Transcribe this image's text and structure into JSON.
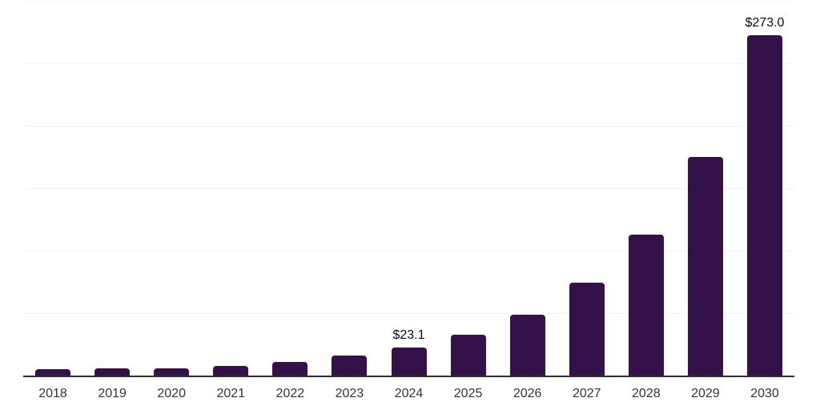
{
  "chart_data": {
    "type": "bar",
    "title": "",
    "xlabel": "",
    "ylabel": "",
    "categories": [
      "2018",
      "2019",
      "2020",
      "2021",
      "2022",
      "2023",
      "2024",
      "2025",
      "2026",
      "2027",
      "2028",
      "2029",
      "2030"
    ],
    "values": [
      5.9,
      6.2,
      6.6,
      8.1,
      11.4,
      16.8,
      23.1,
      33.2,
      49.1,
      74.7,
      113.2,
      175.4,
      273.0
    ],
    "value_labels": [
      "",
      "",
      "",
      "",
      "",
      "",
      "$23.1",
      "",
      "",
      "",
      "",
      "",
      "$273.0"
    ],
    "ylim": [
      0,
      300
    ],
    "gridline_step": 50,
    "grid": true,
    "legend_position": "none",
    "colors": {
      "bar": "#35114A",
      "axis": "#2E2E2E",
      "gridline": "#F1F1F1",
      "tick_label": "#333333",
      "value_label": "#0A0A0A",
      "background": "#FFFFFF"
    }
  }
}
